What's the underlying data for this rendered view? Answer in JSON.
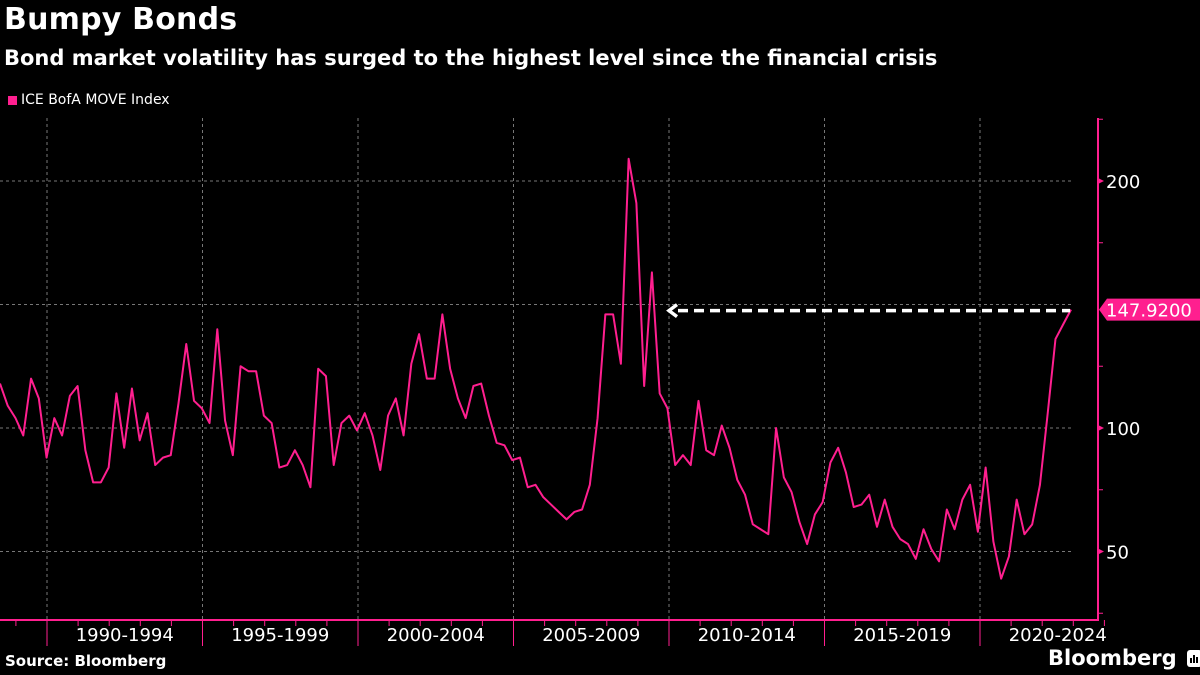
{
  "header": {
    "title": "Bumpy Bonds",
    "subtitle": "Bond market volatility has surged to the highest level since the financial crisis"
  },
  "footer": {
    "source": "Source: Bloomberg",
    "brand": "Bloomberg"
  },
  "colors": {
    "series": "#ff1f8f",
    "background": "#000000",
    "text": "#ffffff",
    "grid": "#777777",
    "arrow": "#ffffff"
  },
  "chart_data": {
    "type": "line",
    "title": "Bumpy Bonds",
    "subtitle": "Bond market volatility has surged to the highest level since the financial crisis",
    "xlabel": "",
    "ylabel": "",
    "legend": {
      "position": "top-left",
      "entries": [
        "ICE BofA MOVE Index"
      ]
    },
    "grid": true,
    "x_start": 1988.5,
    "x_step": 0.25,
    "xlim": [
      1988.5,
      2023.5
    ],
    "ylim": [
      25,
      227
    ],
    "y_ticks": [
      50,
      100,
      200
    ],
    "y_ticks_labels": [
      "50",
      "100",
      "200"
    ],
    "y_grid": [
      50,
      100,
      150,
      200
    ],
    "x_ticks": [
      1990,
      1995,
      2000,
      2005,
      2010,
      2015,
      2020
    ],
    "x_tick_labels": [
      "1990-1994",
      "1995-1999",
      "2000-2004",
      "2005-2009",
      "2010-2014",
      "2015-2019",
      "2020-2024"
    ],
    "last_value_label": "147.9200",
    "last_value": 147.92,
    "annotation": "dashed arrow pointing from latest value back to 2009 level",
    "series": [
      {
        "name": "ICE BofA MOVE Index",
        "values": [
          118,
          109,
          104,
          97,
          120,
          112,
          88,
          104,
          97,
          113,
          117,
          91,
          78,
          78,
          84,
          114,
          92,
          116,
          95,
          106,
          85,
          88,
          89,
          110,
          134,
          111,
          108,
          102,
          140,
          103,
          89,
          125,
          123,
          123,
          105,
          102,
          84,
          85,
          91,
          85,
          76,
          124,
          121,
          85,
          102,
          105,
          99,
          106,
          97,
          83,
          105,
          112,
          97,
          126,
          138,
          120,
          120,
          146,
          124,
          112,
          104,
          117,
          118,
          105,
          94,
          93,
          87,
          88,
          76,
          77,
          72,
          69,
          66,
          63,
          66,
          67,
          77,
          104,
          146,
          146,
          126,
          209,
          191,
          117,
          163,
          114,
          108,
          85,
          89,
          85,
          111,
          91,
          89,
          101,
          92,
          79,
          73,
          61,
          59,
          57,
          100,
          80,
          74,
          62,
          53,
          65,
          70,
          86,
          92,
          82,
          68,
          69,
          73,
          60,
          71,
          60,
          55,
          53,
          47,
          59,
          51,
          46,
          67,
          59,
          71,
          77,
          58,
          84,
          54,
          39,
          48,
          71,
          57,
          61,
          77,
          106,
          136,
          142,
          147.92
        ]
      }
    ]
  }
}
